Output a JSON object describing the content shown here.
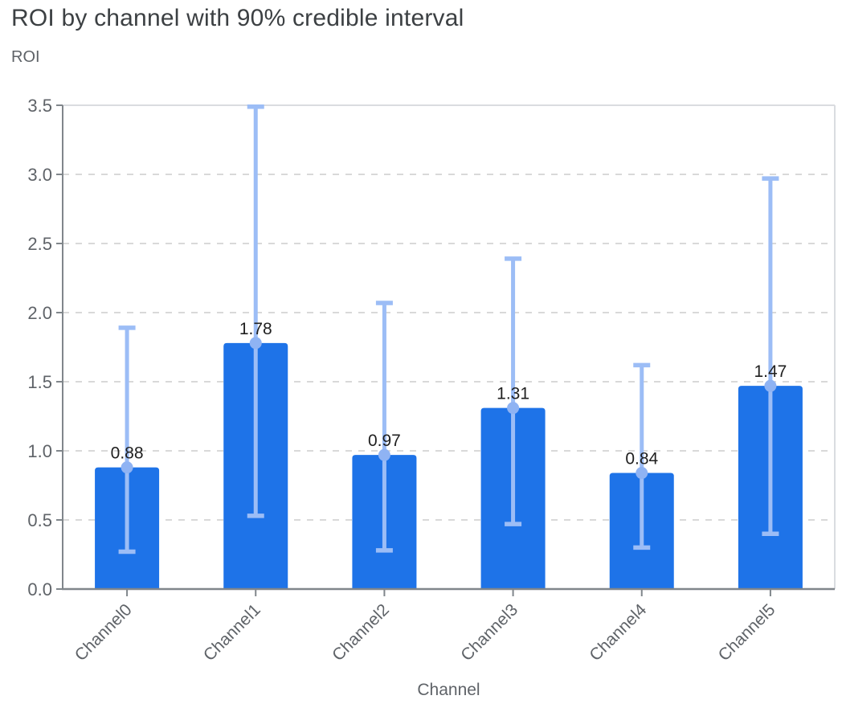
{
  "chart_data": {
    "type": "bar",
    "title": "ROI by channel with 90% credible interval",
    "ylabel": "ROI",
    "xlabel": "Channel",
    "categories": [
      "Channel0",
      "Channel1",
      "Channel2",
      "Channel3",
      "Channel4",
      "Channel5"
    ],
    "values": [
      0.88,
      1.78,
      0.97,
      1.31,
      0.84,
      1.47
    ],
    "value_labels": [
      "0.88",
      "1.78",
      "0.97",
      "1.31",
      "0.84",
      "1.47"
    ],
    "error_low": [
      0.27,
      0.53,
      0.28,
      0.47,
      0.3,
      0.4
    ],
    "error_high": [
      1.89,
      3.49,
      2.07,
      2.39,
      1.62,
      2.97
    ],
    "error_bar_meaning": "90% credible interval",
    "ylim": [
      0,
      3.5
    ],
    "ytick_values": [
      0.0,
      0.5,
      1.0,
      1.5,
      2.0,
      2.5,
      3.0,
      3.5
    ],
    "ytick_labels": [
      "0.0",
      "0.5",
      "1.0",
      "1.5",
      "2.0",
      "2.5",
      "3.0",
      "3.5"
    ],
    "legend": "none",
    "grid": "horizontal-dashed",
    "x_tick_label_rotation_deg": -45,
    "colors": {
      "bar": "#1e73e8",
      "error_bar": "#9cbdf6",
      "mean_marker": "#8fb3f3",
      "gridline": "#d9d9d9",
      "plot_border": "#dadce0",
      "axis_line": "#80868b",
      "tick_label": "#5f6368",
      "value_label": "#1f1f1f",
      "title": "#3c4043"
    }
  }
}
